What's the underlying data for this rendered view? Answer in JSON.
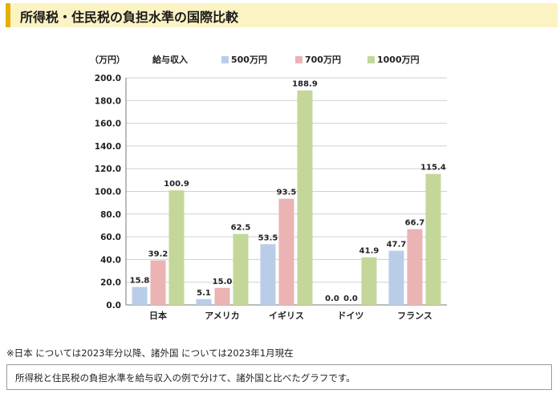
{
  "header": {
    "title": "所得税・住民税の負担水準の国際比較"
  },
  "footnote": "※日本 については2023年分以降、諸外国 については2023年1月現在",
  "caption": "所得税と住民税の負担水準を給与収入の例で分けて、諸外国と比べたグラフです。",
  "chart_data": {
    "type": "bar",
    "title": "",
    "unit_label": "（万円）",
    "legend_title": "給与収入",
    "legend_position": "top",
    "xlabel": "",
    "ylabel": "",
    "ylim": [
      0,
      200
    ],
    "ytick_step": 20,
    "ytick_labels": [
      "0.0",
      "20.0",
      "40.0",
      "60.0",
      "80.0",
      "100.0",
      "120.0",
      "140.0",
      "160.0",
      "180.0",
      "200.0"
    ],
    "grid": true,
    "categories": [
      "日本",
      "アメリカ",
      "イギリス",
      "ドイツ",
      "フランス"
    ],
    "series": [
      {
        "name": "500万円",
        "color": "#b9cde8",
        "values": [
          15.8,
          5.1,
          53.5,
          0.0,
          47.7
        ],
        "labels": [
          "15.8",
          "5.1",
          "53.5",
          "0.0",
          "47.7"
        ]
      },
      {
        "name": "700万円",
        "color": "#ebb3b3",
        "values": [
          39.2,
          15.0,
          93.5,
          0.0,
          66.7
        ],
        "labels": [
          "39.2",
          "15.0",
          "93.5",
          "0.0",
          "66.7"
        ]
      },
      {
        "name": "1000万円",
        "color": "#c3d79a",
        "values": [
          100.9,
          62.5,
          188.9,
          41.9,
          115.4
        ],
        "labels": [
          "100.9",
          "62.5",
          "188.9",
          "41.9",
          "115.4"
        ]
      }
    ]
  }
}
